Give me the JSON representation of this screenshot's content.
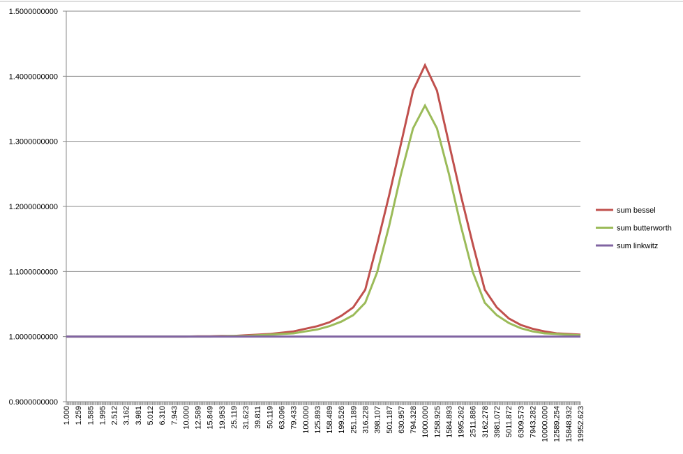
{
  "chart_data": {
    "type": "line",
    "categories": [
      "1.000",
      "1.259",
      "1.585",
      "1.995",
      "2.512",
      "3.162",
      "3.981",
      "5.012",
      "6.310",
      "7.943",
      "10.000",
      "12.589",
      "15.849",
      "19.953",
      "25.119",
      "31.623",
      "39.811",
      "50.119",
      "63.096",
      "79.433",
      "100.000",
      "125.893",
      "158.489",
      "199.526",
      "251.189",
      "316.228",
      "398.107",
      "501.187",
      "630.957",
      "794.328",
      "1000.000",
      "1258.925",
      "1584.893",
      "1995.262",
      "2511.886",
      "3162.278",
      "3981.072",
      "5011.872",
      "6309.573",
      "7943.282",
      "10000.000",
      "12589.254",
      "15848.932",
      "19952.623"
    ],
    "series": [
      {
        "name": "sum bessel",
        "color": "#c0504d",
        "values": [
          1.0,
          1.0,
          1.0,
          1.0,
          1.0,
          1.0,
          1.0,
          1.0,
          1.0,
          1.0,
          1.0,
          1.0005,
          1.0005,
          1.001,
          1.001,
          1.002,
          1.003,
          1.004,
          1.006,
          1.008,
          1.012,
          1.016,
          1.022,
          1.032,
          1.045,
          1.072,
          1.142,
          1.217,
          1.297,
          1.378,
          1.417,
          1.378,
          1.297,
          1.217,
          1.142,
          1.072,
          1.045,
          1.028,
          1.018,
          1.012,
          1.008,
          1.005,
          1.004,
          1.003
        ]
      },
      {
        "name": "sum butterworth",
        "color": "#9bbb59",
        "values": [
          1.0,
          1.0,
          1.0,
          1.0,
          1.0,
          1.0,
          1.0,
          1.0,
          1.0,
          1.0,
          1.0,
          1.0,
          1.0,
          1.0005,
          1.001,
          1.001,
          1.002,
          1.003,
          1.004,
          1.005,
          1.008,
          1.011,
          1.016,
          1.023,
          1.033,
          1.052,
          1.099,
          1.17,
          1.25,
          1.32,
          1.355,
          1.32,
          1.25,
          1.17,
          1.099,
          1.052,
          1.033,
          1.021,
          1.013,
          1.008,
          1.005,
          1.004,
          1.003,
          1.002
        ]
      },
      {
        "name": "sum linkwitz",
        "color": "#8064a2",
        "values": [
          1,
          1,
          1,
          1,
          1,
          1,
          1,
          1,
          1,
          1,
          1,
          1,
          1,
          1,
          1,
          1,
          1,
          1,
          1,
          1,
          1,
          1,
          1,
          1,
          1,
          1,
          1,
          1,
          1,
          1,
          1,
          1,
          1,
          1,
          1,
          1,
          1,
          1,
          1,
          1,
          1,
          1,
          1,
          1
        ]
      }
    ],
    "ylim": [
      0.9,
      1.5
    ],
    "yticks": [
      {
        "value": 0.9,
        "label": "0.9000000000"
      },
      {
        "value": 1.0,
        "label": "1.0000000000"
      },
      {
        "value": 1.1,
        "label": "1.1000000000"
      },
      {
        "value": 1.2,
        "label": "1.2000000000"
      },
      {
        "value": 1.3,
        "label": "1.3000000000"
      },
      {
        "value": 1.4,
        "label": "1.4000000000"
      },
      {
        "value": 1.5,
        "label": "1.5000000000"
      }
    ],
    "grid": true,
    "legend": "right"
  }
}
